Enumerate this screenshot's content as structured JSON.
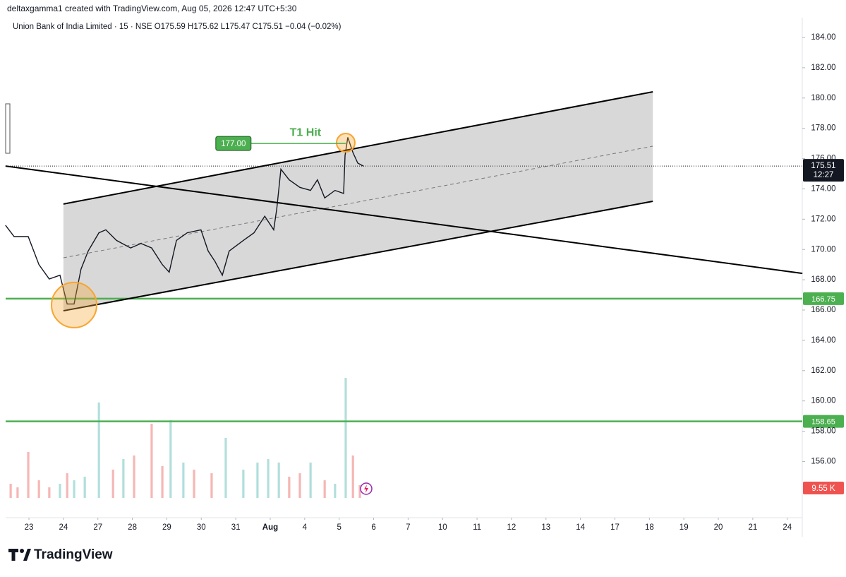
{
  "header": {
    "attribution": "deltaxgamma1 created with TradingView.com, Aug 05, 2026 12:47 UTC+5:30",
    "symbol_line": "Union Bank of India Limited · 15 · NSE  O175.59  H175.62  L175.47  C175.51  −0.04 (−0.02%)"
  },
  "footer": {
    "brand": "TradingView"
  },
  "chart_data": {
    "type": "line",
    "color": "#131722",
    "x": [
      -0.68,
      -0.43,
      -0.02,
      0.29,
      0.59,
      0.9,
      1.11,
      1.31,
      1.51,
      1.72,
      2.03,
      2.23,
      2.54,
      2.95,
      3.25,
      3.56,
      3.87,
      4.07,
      4.28,
      4.59,
      4.99,
      5.2,
      5.4,
      5.61,
      5.81,
      6.22,
      6.53,
      6.84,
      7.1,
      7.19,
      7.31,
      7.55,
      7.86,
      8.17,
      8.37,
      8.58,
      8.88,
      9.13,
      9.17,
      9.25,
      9.4,
      9.54,
      9.7
    ],
    "values": [
      171.6,
      170.85,
      170.85,
      169.0,
      168.05,
      168.3,
      166.4,
      166.4,
      168.7,
      169.9,
      171.1,
      171.3,
      170.6,
      170.1,
      170.4,
      170.1,
      169.0,
      168.5,
      170.6,
      171.1,
      171.3,
      169.9,
      169.2,
      168.3,
      169.9,
      170.6,
      171.1,
      172.2,
      171.3,
      172.7,
      175.3,
      174.6,
      174.1,
      173.9,
      174.6,
      173.4,
      173.9,
      173.7,
      176.2,
      177.4,
      176.4,
      175.7,
      175.51
    ],
    "xlim": [
      -0.676,
      22.435
    ],
    "xticks": [
      {
        "value": 0,
        "label": "23"
      },
      {
        "value": 1,
        "label": "24"
      },
      {
        "value": 2,
        "label": "27"
      },
      {
        "value": 3,
        "label": "28"
      },
      {
        "value": 4,
        "label": "29"
      },
      {
        "value": 5,
        "label": "30"
      },
      {
        "value": 6,
        "label": "31"
      },
      {
        "value": 7,
        "label": "Aug"
      },
      {
        "value": 8,
        "label": "4"
      },
      {
        "value": 9,
        "label": "5"
      },
      {
        "value": 10,
        "label": "6"
      },
      {
        "value": 11,
        "label": "7"
      },
      {
        "value": 12,
        "label": "10"
      },
      {
        "value": 13,
        "label": "11"
      },
      {
        "value": 14,
        "label": "12"
      },
      {
        "value": 15,
        "label": "13"
      },
      {
        "value": 16,
        "label": "14"
      },
      {
        "value": 17,
        "label": "17"
      },
      {
        "value": 18,
        "label": "18"
      },
      {
        "value": 19,
        "label": "19"
      },
      {
        "value": 20,
        "label": "20"
      },
      {
        "value": 21,
        "label": "21"
      },
      {
        "value": 22,
        "label": "24"
      }
    ],
    "ylim": [
      152.29,
      184.84
    ],
    "yticks": [
      {
        "value": 156,
        "label": "156.00"
      },
      {
        "value": 158,
        "label": "158.00"
      },
      {
        "value": 160,
        "label": "160.00"
      },
      {
        "value": 162,
        "label": "162.00"
      },
      {
        "value": 164,
        "label": "164.00"
      },
      {
        "value": 166,
        "label": "166.00"
      },
      {
        "value": 168,
        "label": "168.00"
      },
      {
        "value": 170,
        "label": "170.00"
      },
      {
        "value": 172,
        "label": "172.00"
      },
      {
        "value": 174,
        "label": "174.00"
      },
      {
        "value": 176,
        "label": "176.00"
      },
      {
        "value": 178,
        "label": "178.00"
      },
      {
        "value": 180,
        "label": "180.00"
      },
      {
        "value": 182,
        "label": "182.00"
      },
      {
        "value": 184,
        "label": "184.00"
      }
    ],
    "last_price": {
      "value": 175.51,
      "label": "175.51",
      "countdown": "12:27"
    },
    "levels": [
      {
        "value": 166.75,
        "label": "166.75",
        "color": "#4caf50"
      },
      {
        "value": 158.65,
        "label": "158.65",
        "color": "#4caf50"
      }
    ],
    "channel": {
      "upper": {
        "x": [
          1.0,
          18.1
        ],
        "y": [
          173.0,
          180.41
        ]
      },
      "lower": {
        "x": [
          1.0,
          18.1
        ],
        "y": [
          165.95,
          173.18
        ]
      },
      "mid": {
        "x": [
          1.0,
          18.1
        ],
        "y": [
          169.45,
          176.82
        ]
      },
      "fill": "#d4d4d4"
    },
    "trendline": {
      "x": [
        -0.68,
        22.44
      ],
      "y": [
        175.51,
        168.42
      ]
    },
    "markers": [
      {
        "x": 1.31,
        "y": 166.33,
        "color": "#f7a530"
      },
      {
        "x": 9.19,
        "y": 177.05,
        "color": "#f7a530"
      }
    ],
    "annotation": {
      "text": "T1 Hit",
      "value": 177,
      "label": "177.00",
      "x": [
        5.42,
        9.19
      ],
      "color": "#4caf50"
    },
    "volume": {
      "x": [
        -0.53,
        -0.33,
        -0.02,
        0.29,
        0.59,
        0.9,
        1.11,
        1.31,
        1.62,
        2.03,
        2.44,
        2.74,
        3.05,
        3.56,
        3.87,
        4.11,
        4.48,
        4.79,
        5.3,
        5.71,
        6.22,
        6.63,
        6.94,
        7.25,
        7.55,
        7.86,
        8.17,
        8.58,
        8.88,
        9.19,
        9.4,
        9.6
      ],
      "values": [
        10.6,
        7.9,
        34.4,
        13.2,
        7.9,
        10.6,
        18.5,
        13.2,
        15.9,
        71.5,
        21.2,
        29.1,
        31.8,
        55.6,
        23.8,
        58.2,
        26.5,
        21.2,
        18.5,
        45,
        21.2,
        26.5,
        29.1,
        26.5,
        15.9,
        18.5,
        26.5,
        13.2,
        10.6,
        90,
        31.8,
        9.55
      ],
      "colors": [
        "#f5b7b5",
        "#f5b7b5",
        "#f5b7b5",
        "#f5b7b5",
        "#f5b7b5",
        "#b2dfdb",
        "#f5b7b5",
        "#b2dfdb",
        "#b2dfdb",
        "#b2dfdb",
        "#f5b7b5",
        "#b2dfdb",
        "#f5b7b5",
        "#f5b7b5",
        "#f5b7b5",
        "#b2dfdb",
        "#b2dfdb",
        "#f5b7b5",
        "#f5b7b5",
        "#b2dfdb",
        "#b2dfdb",
        "#b2dfdb",
        "#b2dfdb",
        "#b2dfdb",
        "#f5b7b5",
        "#f5b7b5",
        "#b2dfdb",
        "#f5b7b5",
        "#b2dfdb",
        "#b2dfdb",
        "#f5b7b5",
        "#f5b7b5"
      ],
      "ylim": [
        0,
        90
      ],
      "last_label": "9.55 K",
      "label_color": "#ef5350"
    }
  }
}
